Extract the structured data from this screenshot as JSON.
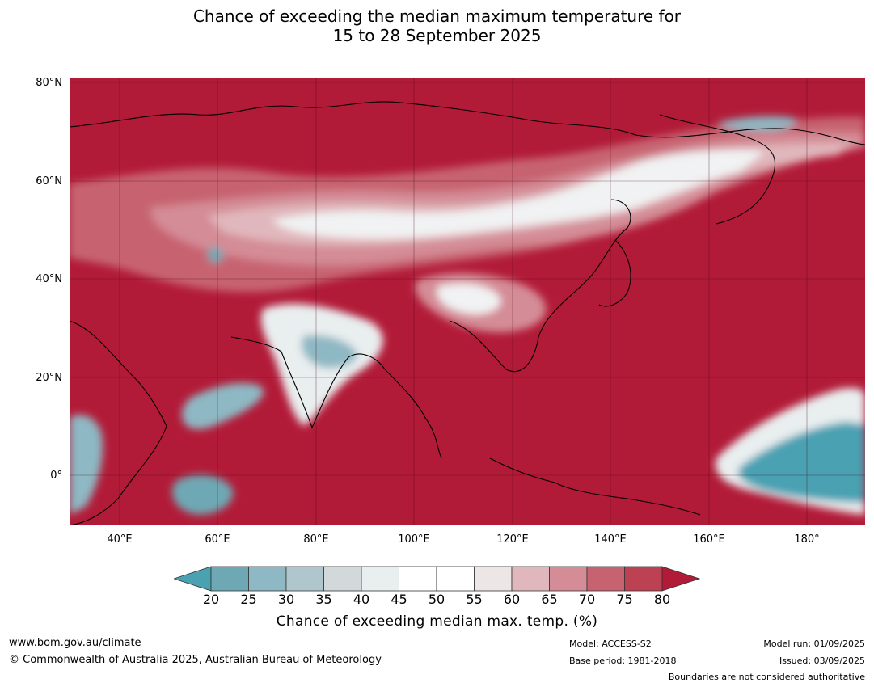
{
  "title": {
    "line1": "Chance of exceeding the median maximum temperature for",
    "line2": "15 to 28 September 2025"
  },
  "map": {
    "background_color": "#b21b38",
    "lat_labels": [
      "80°N",
      "60°N",
      "40°N",
      "20°N",
      "0°"
    ],
    "lon_labels": [
      "40°E",
      "60°E",
      "80°E",
      "100°E",
      "120°E",
      "140°E",
      "160°E",
      "180°"
    ]
  },
  "legend": {
    "ticks": [
      "20",
      "25",
      "30",
      "35",
      "40",
      "45",
      "50",
      "55",
      "60",
      "65",
      "70",
      "75",
      "80"
    ],
    "colors": [
      "#4aa1b2",
      "#6ea8b4",
      "#8eb8c3",
      "#afc7cc",
      "#d3d8da",
      "#e9eeef",
      "#ffffff",
      "#ffffff",
      "#ece6e7",
      "#e0b7bc",
      "#d48c96",
      "#c76371",
      "#bc4253",
      "#b21b38"
    ],
    "title": "Chance of exceeding median max. temp. (%)"
  },
  "footer": {
    "website": "www.bom.gov.au/climate",
    "copyright": "© Commonwealth of Australia 2025, Australian Bureau of Meteorology",
    "model": "Model: ACCESS-S2",
    "base_period": "Base period: 1981-2018",
    "model_run": "Model run: 01/09/2025",
    "issued": "Issued: 03/09/2025",
    "disclaimer": "Boundaries are not considered authoritative"
  }
}
